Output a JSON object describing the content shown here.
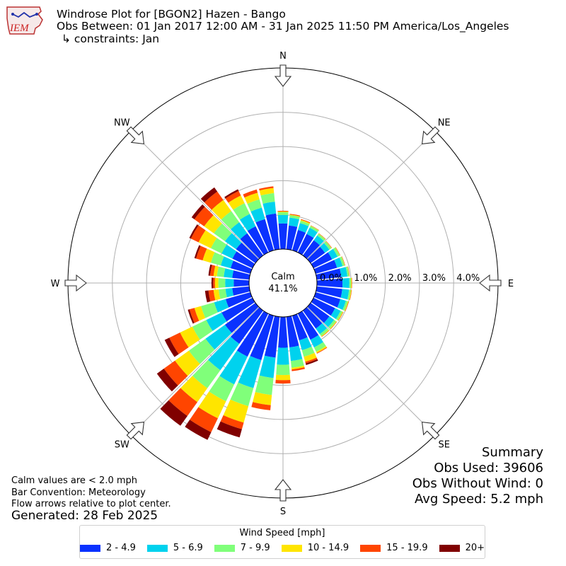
{
  "header": {
    "logo_text": "IEM",
    "title_line1": "Windrose Plot for [BGON2] Hazen - Bango",
    "title_line2": "Obs Between: 01 Jan 2017 12:00 AM - 31 Jan 2025 11:50 PM America/Los_Angeles",
    "title_line3": "↳ constraints: Jan"
  },
  "footer": {
    "note1": "Calm values are < 2.0 mph",
    "note2": "Bar Convention: Meteorology",
    "note3": "Flow arrows relative to plot center.",
    "generated": "Generated: 28 Feb 2025"
  },
  "summary": {
    "title": "Summary",
    "obs_used": "Obs Used: 39606",
    "obs_without_wind": "Obs Without Wind: 0",
    "avg_speed": "Avg Speed: 5.2 mph"
  },
  "legend": {
    "title": "Wind Speed [mph]"
  },
  "chart_data": {
    "type": "windrose",
    "calm_label": "Calm",
    "calm_value": "41.1%",
    "radial_ticks": [
      0,
      1,
      2,
      3,
      4
    ],
    "radial_tick_labels": [
      "0.0%",
      "1.0%",
      "2.0%",
      "3.0%",
      "4.0%"
    ],
    "rmax": 5.3,
    "directions": [
      0,
      10,
      20,
      30,
      40,
      50,
      60,
      70,
      80,
      90,
      100,
      110,
      120,
      130,
      140,
      150,
      160,
      170,
      180,
      190,
      200,
      210,
      220,
      230,
      240,
      250,
      260,
      270,
      280,
      290,
      300,
      310,
      320,
      330,
      340,
      350
    ],
    "compass_labels": [
      {
        "label": "N",
        "angle": 0
      },
      {
        "label": "NE",
        "angle": 45
      },
      {
        "label": "E",
        "angle": 90
      },
      {
        "label": "SE",
        "angle": 135
      },
      {
        "label": "S",
        "angle": 180
      },
      {
        "label": "SW",
        "angle": 225
      },
      {
        "label": "W",
        "angle": 270
      },
      {
        "label": "NW",
        "angle": 315
      }
    ],
    "bins": [
      {
        "name": "2 - 4.9",
        "color": "#0a32ff"
      },
      {
        "name": "5 - 6.9",
        "color": "#00d2ee"
      },
      {
        "name": "7 - 9.9",
        "color": "#80ff7a"
      },
      {
        "name": "10 - 14.9",
        "color": "#ffe500"
      },
      {
        "name": "15 - 19.9",
        "color": "#ff4500"
      },
      {
        "name": "20+",
        "color": "#800000"
      }
    ],
    "cumulative": [
      [
        0.75,
        1.0,
        1.08,
        1.1,
        1.12,
        1.12
      ],
      [
        0.7,
        0.93,
        1.0,
        1.02,
        1.04,
        1.04
      ],
      [
        0.62,
        0.83,
        0.9,
        0.93,
        0.95,
        0.95
      ],
      [
        0.6,
        0.8,
        0.86,
        0.87,
        0.88,
        0.88
      ],
      [
        0.55,
        0.72,
        0.78,
        0.79,
        0.8,
        0.8
      ],
      [
        0.52,
        0.68,
        0.75,
        0.76,
        0.77,
        0.77
      ],
      [
        0.6,
        0.78,
        0.85,
        0.86,
        0.87,
        0.87
      ],
      [
        0.65,
        0.82,
        0.88,
        0.89,
        0.9,
        0.9
      ],
      [
        0.72,
        0.9,
        0.95,
        0.96,
        0.97,
        0.97
      ],
      [
        0.75,
        0.95,
        1.0,
        1.02,
        1.03,
        1.03
      ],
      [
        0.75,
        0.95,
        1.0,
        1.02,
        1.03,
        1.03
      ],
      [
        0.75,
        0.92,
        0.98,
        1.0,
        1.01,
        1.01
      ],
      [
        0.7,
        0.88,
        0.94,
        0.96,
        0.97,
        0.97
      ],
      [
        0.68,
        0.85,
        0.92,
        0.94,
        0.95,
        0.95
      ],
      [
        0.65,
        0.85,
        0.92,
        0.94,
        0.95,
        0.95
      ],
      [
        0.85,
        1.1,
        1.24,
        1.28,
        1.3,
        1.3
      ],
      [
        0.75,
        1.05,
        1.25,
        1.4,
        1.45,
        1.5
      ],
      [
        0.9,
        1.3,
        1.5,
        1.55,
        1.6,
        1.6
      ],
      [
        0.9,
        1.4,
        1.7,
        1.85,
        1.95,
        1.95
      ],
      [
        1.2,
        1.8,
        2.3,
        2.6,
        2.75,
        2.75
      ],
      [
        1.35,
        2.2,
        2.75,
        3.25,
        3.45,
        3.7
      ],
      [
        1.4,
        2.3,
        2.85,
        3.4,
        3.85,
        4.1
      ],
      [
        1.2,
        2.15,
        2.8,
        3.3,
        3.8,
        4.15
      ],
      [
        1.1,
        1.8,
        2.4,
        2.9,
        3.3,
        3.55
      ],
      [
        1.0,
        1.5,
        1.95,
        2.35,
        2.7,
        2.85
      ],
      [
        0.75,
        1.1,
        1.5,
        1.7,
        1.85,
        1.9
      ],
      [
        0.5,
        0.7,
        0.9,
        1.05,
        1.2,
        1.3
      ],
      [
        0.45,
        0.7,
        0.9,
        1.0,
        1.05,
        1.1
      ],
      [
        0.5,
        0.75,
        0.95,
        1.05,
        1.15,
        1.2
      ],
      [
        0.6,
        0.9,
        1.2,
        1.45,
        1.65,
        1.7
      ],
      [
        0.65,
        1.0,
        1.35,
        1.75,
        2.0,
        2.05
      ],
      [
        0.7,
        1.1,
        1.5,
        1.85,
        2.2,
        2.3
      ],
      [
        0.8,
        1.2,
        1.6,
        2.0,
        2.3,
        2.45
      ],
      [
        0.85,
        1.25,
        1.6,
        1.85,
        2.0,
        2.05
      ],
      [
        0.95,
        1.3,
        1.55,
        1.75,
        1.85,
        1.85
      ],
      [
        1.05,
        1.4,
        1.65,
        1.8,
        1.85,
        1.85
      ]
    ]
  }
}
